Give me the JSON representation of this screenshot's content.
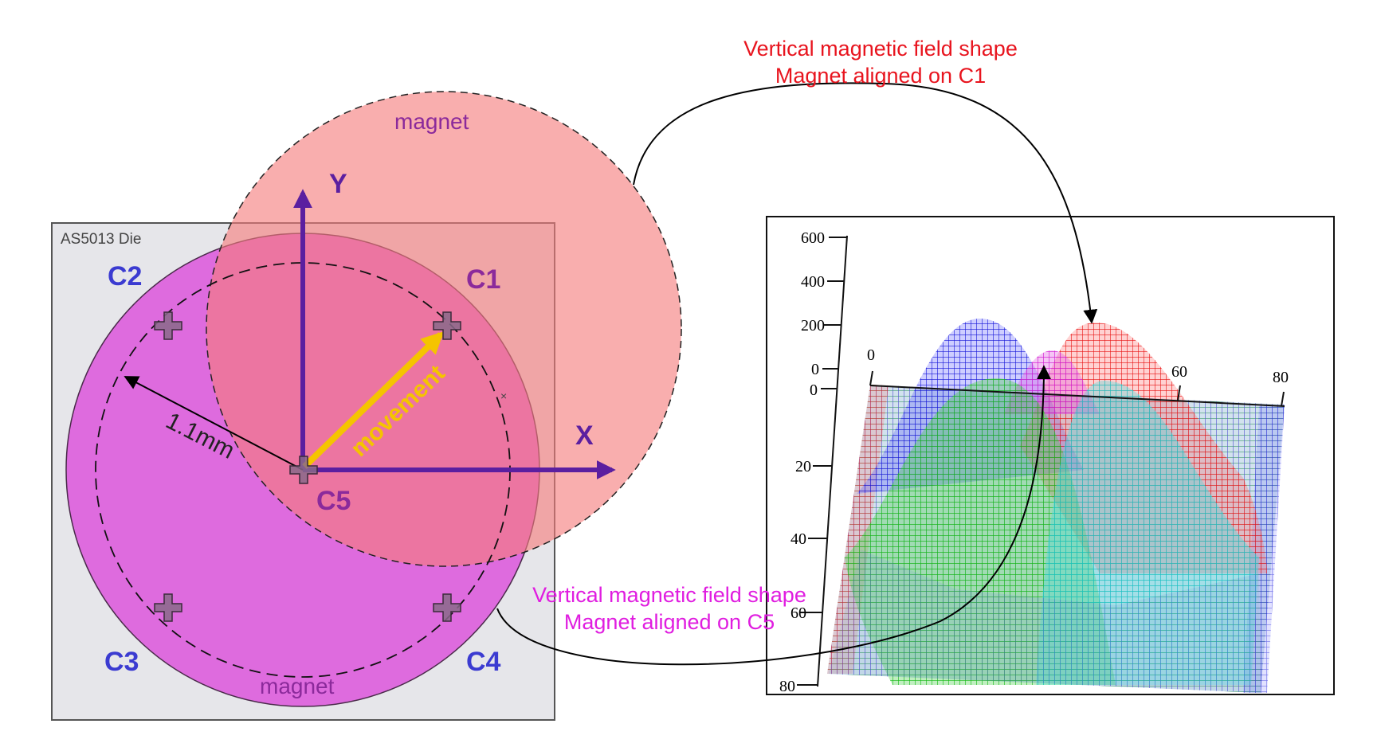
{
  "die": {
    "title": "AS5013 Die"
  },
  "corners": {
    "c1": "C1",
    "c2": "C2",
    "c3": "C3",
    "c4": "C4",
    "c5": "C5"
  },
  "axes": {
    "x": "X",
    "y": "Y"
  },
  "magnet": {
    "shifted_label": "magnet",
    "centered_label": "magnet"
  },
  "movement_label": "movement",
  "radius_label": "1.1mm",
  "annotations": {
    "c1_line1": "Vertical magnetic field shape",
    "c1_line2": "Magnet aligned on C1",
    "c5_line1": "Vertical magnetic field shape",
    "c5_line2": "Magnet aligned on C5"
  },
  "plot": {
    "z_ticks": [
      "600",
      "400",
      "200",
      "0"
    ],
    "y_ticks": [
      "0",
      "20",
      "40",
      "60",
      "80"
    ],
    "x_ticks": [
      "0",
      "60",
      "80"
    ]
  },
  "colors": {
    "magnet_c1": "#f28b8b",
    "magnet_c5": "#d633d6",
    "label_blue": "#3b3bd1",
    "label_purple": "#8b2a9b",
    "axis_purple": "#5b1fa0",
    "movement": "#f5c400",
    "annot_red": "#e8141e",
    "annot_magenta": "#e01de0"
  }
}
